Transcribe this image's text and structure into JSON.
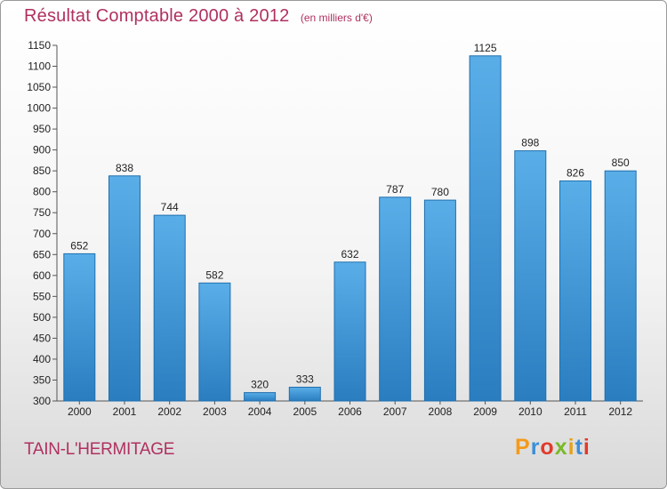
{
  "chart_data": {
    "type": "bar",
    "title": "Résultat Comptable 2000 à 2012",
    "unit": "(en milliers d'€)",
    "categories": [
      "2000",
      "2001",
      "2002",
      "2003",
      "2004",
      "2005",
      "2006",
      "2007",
      "2008",
      "2009",
      "2010",
      "2011",
      "2012"
    ],
    "values": [
      652,
      838,
      744,
      582,
      320,
      333,
      632,
      787,
      780,
      1125,
      898,
      826,
      850
    ],
    "data_labels": [
      "652",
      "838",
      "744",
      "582",
      "320",
      "333",
      "632",
      "787",
      "780",
      "1125",
      "898",
      "826",
      "850"
    ],
    "ylim": [
      300,
      1150
    ],
    "ytick_step": 50,
    "grid": false,
    "legend": "none",
    "bar_color_top": "#5aaee8",
    "bar_color_bottom": "#2a7ec0"
  },
  "footer": {
    "location": "TAIN-L'HERMITAGE",
    "brand": "Proxiti",
    "brand_colors": [
      "#f39a1a",
      "#3a8fd6",
      "#e23a2a",
      "#7ab929",
      "#e7a21a",
      "#3a8fd6",
      "#e23a2a"
    ]
  }
}
